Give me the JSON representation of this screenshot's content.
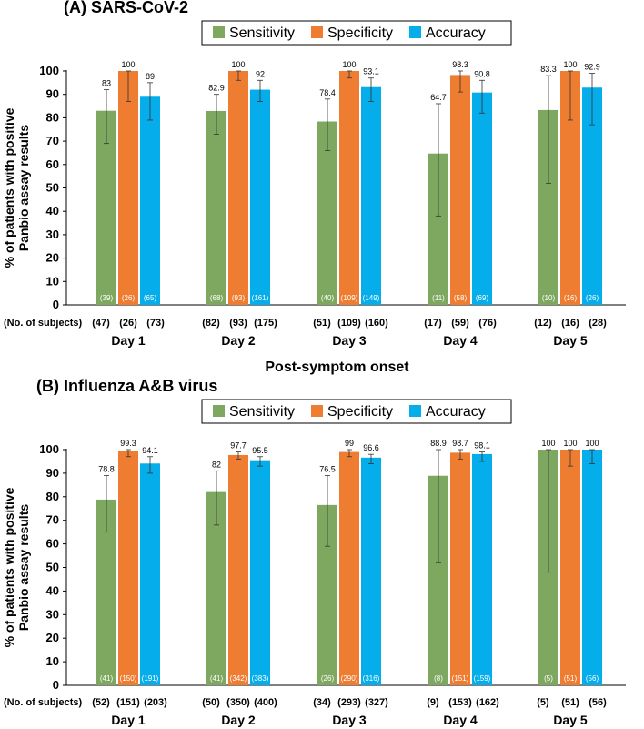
{
  "colors": {
    "sensitivity": "#7ea860",
    "specificity": "#ee7d32",
    "accuracy": "#05adeb"
  },
  "legend": [
    "Sensitivity",
    "Specificity",
    "Accuracy"
  ],
  "chart_data": [
    {
      "type": "bar",
      "title": "(A) SARS-CoV-2",
      "ylabel": [
        "% of patients with positive",
        "Panbio assay results"
      ],
      "xlabel": "Post-symptom onset",
      "ylim": [
        0,
        100
      ],
      "yticks": [
        0,
        10,
        20,
        30,
        40,
        50,
        60,
        70,
        80,
        90,
        100
      ],
      "categories": [
        "Day 1",
        "Day 2",
        "Day 3",
        "Day 4",
        "Day 5"
      ],
      "subjects_label": "(No. of subjects)",
      "subjects": [
        [
          "(47)",
          "(26)",
          "(73)"
        ],
        [
          "(82)",
          "(93)",
          "(175)"
        ],
        [
          "(51)",
          "(109)",
          "(160)"
        ],
        [
          "(17)",
          "(59)",
          "(76)"
        ],
        [
          "(12)",
          "(16)",
          "(28)"
        ]
      ],
      "series": [
        {
          "name": "Sensitivity",
          "values": [
            83,
            82.9,
            78.4,
            64.7,
            83.3
          ],
          "labels": [
            "83",
            "82.9",
            "78.4",
            "64.7",
            "83.3"
          ],
          "n": [
            "(39)",
            "(68)",
            "(40)",
            "(11)",
            "(10)"
          ],
          "err_low": [
            69,
            73,
            66,
            38,
            52
          ],
          "err_high": [
            92,
            90,
            88,
            86,
            98
          ]
        },
        {
          "name": "Specificity",
          "values": [
            100,
            100,
            100,
            98.3,
            100
          ],
          "labels": [
            "100",
            "100",
            "100",
            "98.3",
            "100"
          ],
          "n": [
            "(26)",
            "(93)",
            "(109)",
            "(58)",
            "(16)"
          ],
          "err_low": [
            87,
            96,
            97,
            91,
            79
          ],
          "err_high": [
            100,
            100,
            100,
            100,
            100
          ]
        },
        {
          "name": "Accuracy",
          "values": [
            89,
            92,
            93.1,
            90.8,
            92.9
          ],
          "labels": [
            "89",
            "92",
            "93.1",
            "90.8",
            "92.9"
          ],
          "n": [
            "(65)",
            "(161)",
            "(149)",
            "(69)",
            "(26)"
          ],
          "err_low": [
            79,
            87,
            87,
            82,
            77
          ],
          "err_high": [
            95,
            96,
            97,
            96,
            99
          ]
        }
      ]
    },
    {
      "type": "bar",
      "title": "(B) Influenza A&B virus",
      "ylabel": [
        "% of patients with positive",
        "Panbio assay results"
      ],
      "xlabel": "Post-symptom onset",
      "ylim": [
        0,
        100
      ],
      "yticks": [
        0,
        10,
        20,
        30,
        40,
        50,
        60,
        70,
        80,
        90,
        100
      ],
      "categories": [
        "Day 1",
        "Day 2",
        "Day 3",
        "Day 4",
        "Day 5"
      ],
      "subjects_label": "(No. of subjects)",
      "subjects": [
        [
          "(52)",
          "(151)",
          "(203)"
        ],
        [
          "(50)",
          "(350)",
          "(400)"
        ],
        [
          "(34)",
          "(293)",
          "(327)"
        ],
        [
          "(9)",
          "(153)",
          "(162)"
        ],
        [
          "(5)",
          "(51)",
          "(56)"
        ]
      ],
      "series": [
        {
          "name": "Sensitivity",
          "values": [
            78.8,
            82,
            76.5,
            88.9,
            100
          ],
          "labels": [
            "78.8",
            "82",
            "76.5",
            "88.9",
            "100"
          ],
          "n": [
            "(41)",
            "(41)",
            "(26)",
            "(8)",
            "(5)"
          ],
          "err_low": [
            65,
            68,
            59,
            52,
            48
          ],
          "err_high": [
            89,
            91,
            89,
            100,
            100
          ]
        },
        {
          "name": "Specificity",
          "values": [
            99.3,
            97.7,
            99,
            98.7,
            100
          ],
          "labels": [
            "99.3",
            "97.7",
            "99",
            "98.7",
            "100"
          ],
          "n": [
            "(150)",
            "(342)",
            "(290)",
            "(151)",
            "(51)"
          ],
          "err_low": [
            97,
            96,
            97,
            96,
            93
          ],
          "err_high": [
            100,
            99,
            100,
            100,
            100
          ]
        },
        {
          "name": "Accuracy",
          "values": [
            94.1,
            95.5,
            96.6,
            98.1,
            100
          ],
          "labels": [
            "94.1",
            "95.5",
            "96.6",
            "98.1",
            "100"
          ],
          "n": [
            "(191)",
            "(383)",
            "(316)",
            "(159)",
            "(56)"
          ],
          "err_low": [
            90,
            93,
            94,
            95,
            94
          ],
          "err_high": [
            97,
            97,
            98,
            99,
            100
          ]
        }
      ]
    }
  ]
}
